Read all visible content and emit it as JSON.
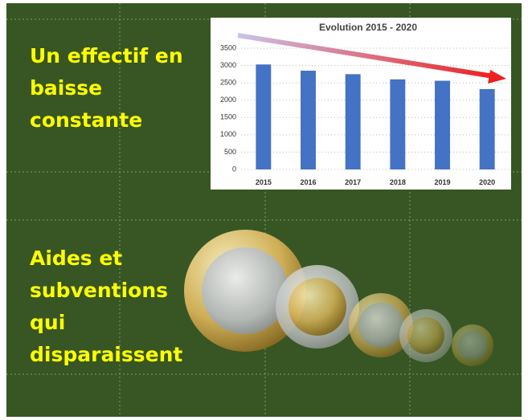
{
  "headings": [
    {
      "lines": [
        "Un effectif en",
        "baisse",
        "constante"
      ]
    },
    {
      "lines": [
        "Aides et",
        "subventions",
        "qui",
        "disparaissent"
      ]
    }
  ],
  "chart_data": {
    "type": "bar",
    "title": "Evolution 2015 - 2020",
    "categories": [
      "2015",
      "2016",
      "2017",
      "2018",
      "2019",
      "2020"
    ],
    "values": [
      3030,
      2850,
      2750,
      2600,
      2560,
      2320
    ],
    "color": "#4472c4",
    "ylim": [
      0,
      3500
    ],
    "yticks": [
      0,
      500,
      1000,
      1500,
      2000,
      2500,
      3000,
      3500
    ],
    "grid": true
  }
}
